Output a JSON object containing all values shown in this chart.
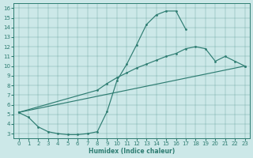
{
  "bg_color": "#cce8e8",
  "line_color": "#2e7d72",
  "xlabel": "Humidex (Indice chaleur)",
  "xlim_min": -0.5,
  "xlim_max": 23.5,
  "ylim_min": 2.5,
  "ylim_max": 16.5,
  "xticks": [
    0,
    1,
    2,
    3,
    4,
    5,
    6,
    7,
    8,
    9,
    10,
    11,
    12,
    13,
    14,
    15,
    16,
    17,
    18,
    19,
    20,
    21,
    22,
    23
  ],
  "yticks": [
    3,
    4,
    5,
    6,
    7,
    8,
    9,
    10,
    11,
    12,
    13,
    14,
    15,
    16
  ],
  "curve1_x": [
    0,
    1,
    2,
    3,
    4,
    5,
    6,
    7,
    8,
    9,
    10,
    11,
    12,
    13,
    14,
    15,
    16,
    17
  ],
  "curve1_y": [
    5.2,
    4.7,
    3.7,
    3.2,
    3.0,
    2.9,
    2.9,
    3.0,
    3.2,
    5.3,
    8.5,
    10.2,
    12.2,
    14.3,
    15.3,
    15.7,
    15.7,
    13.8
  ],
  "curve2_x": [
    0,
    8,
    9,
    10,
    11,
    12,
    13,
    14,
    15,
    16,
    17,
    18,
    19,
    20,
    21,
    22,
    23
  ],
  "curve2_y": [
    5.2,
    7.5,
    8.2,
    8.8,
    9.3,
    9.8,
    10.2,
    10.6,
    11.0,
    11.3,
    11.8,
    12.0,
    11.8,
    10.5,
    11.0,
    10.5,
    10.0
  ]
}
